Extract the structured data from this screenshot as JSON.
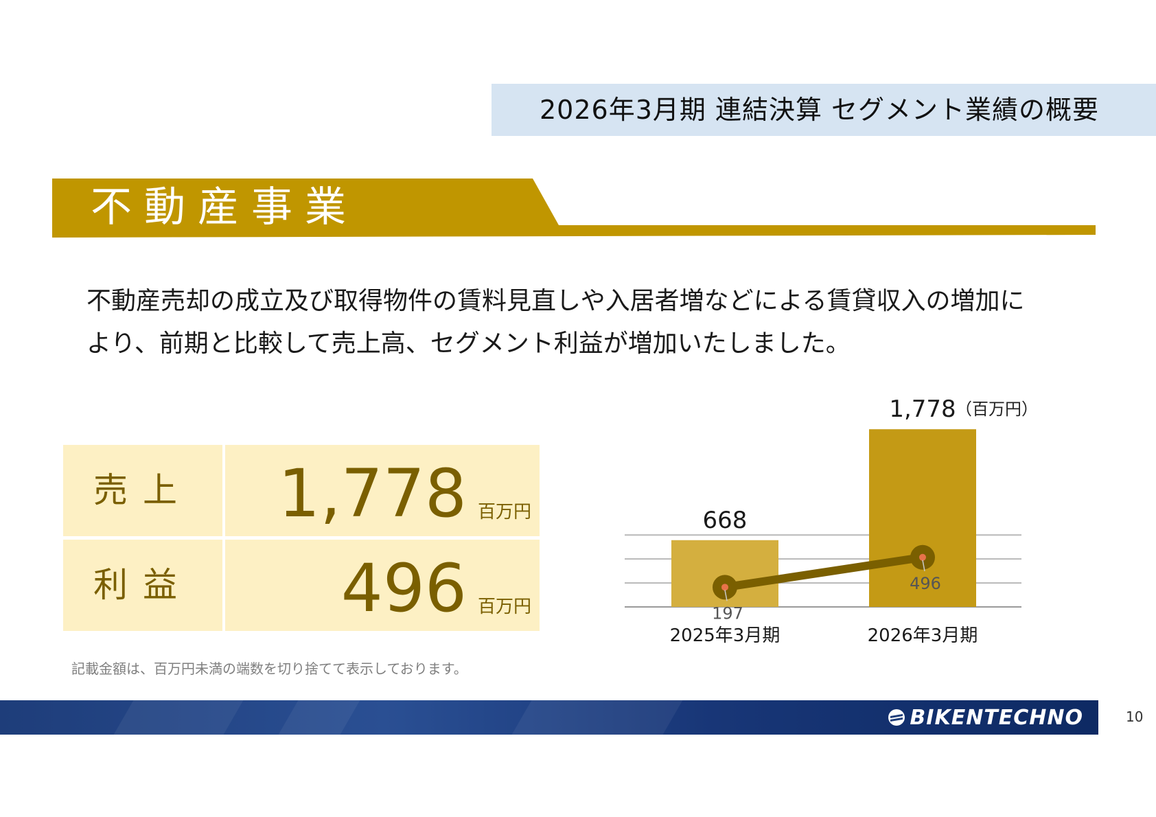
{
  "header": {
    "title": "2026年3月期 連結決算 セグメント業績の概要"
  },
  "section": {
    "title": "不動産事業"
  },
  "description": "不動産売却の成立及び取得物件の賃料見直しや入居者増などによる賃貸収入の増加により、前期と比較して売上高、セグメント利益が増加いたしました。",
  "kpis": [
    {
      "label": "売上",
      "value": "1,778",
      "unit": "百万円"
    },
    {
      "label": "利益",
      "value": "496",
      "unit": "百万円"
    }
  ],
  "chart_data": {
    "type": "bar",
    "unit_label": "（百万円）",
    "categories": [
      "2025年3月期",
      "2026年3月期"
    ],
    "series": [
      {
        "type": "bar",
        "values": [
          668,
          1778
        ],
        "labels": [
          "668",
          "1,778"
        ],
        "colors": [
          "#d4af3f",
          "#c49a15"
        ]
      },
      {
        "type": "line",
        "values": [
          197,
          496
        ],
        "labels": [
          "197",
          "496"
        ],
        "color": "#7a5f00"
      }
    ],
    "ylim": [
      0,
      1800
    ],
    "grid": true
  },
  "footnote": "記載金額は、百万円未満の端数を切り捨てて表示しております。",
  "footer": {
    "logo_text": "BIKENTECHNO"
  },
  "page_number": "10",
  "colors": {
    "gold": "#c09600",
    "cream": "#fdf0c4",
    "brown": "#7a5f00",
    "navy": "#1e3d7a",
    "title_blue": "#d6e4f2"
  }
}
